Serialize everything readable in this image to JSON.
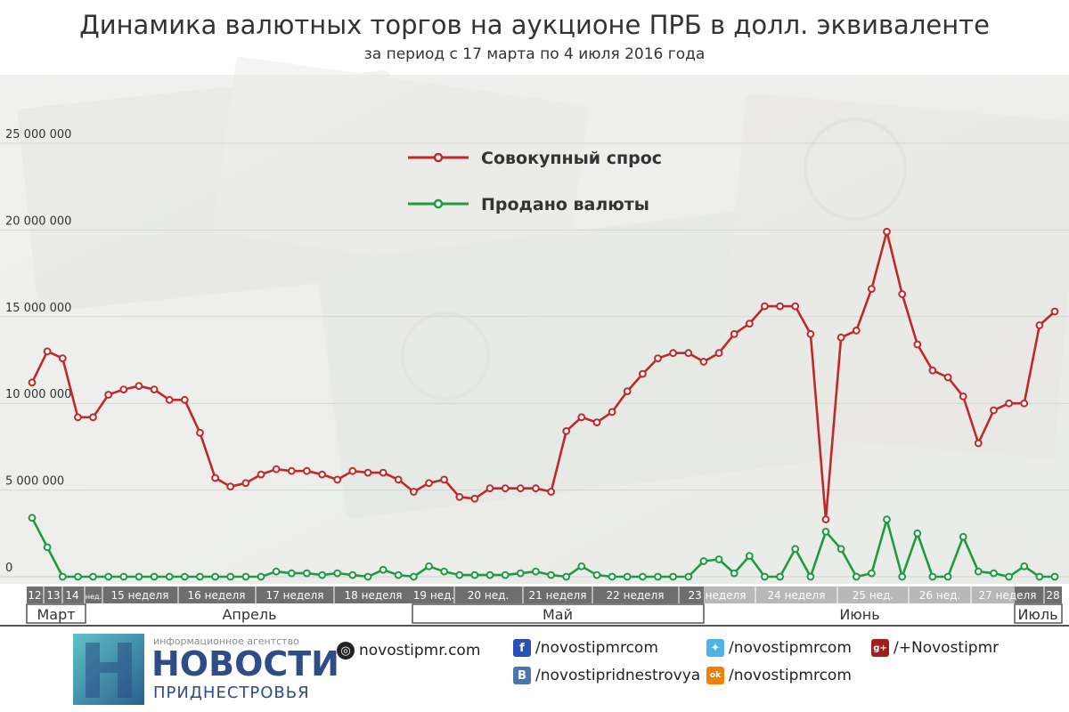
{
  "title": "Динамика валютных торгов на аукционе ПРБ в долл. эквиваленте",
  "subtitle": "за период с 17 марта по 4 июля 2016 года",
  "colors": {
    "demand": "#c0282c",
    "sold": "#1f9a43",
    "week_dark": "#6e6e6e",
    "week_light": "#b8b8b8",
    "brand": "#2e4c86"
  },
  "chart_data": {
    "type": "line",
    "title": "Динамика валютных торгов на аукционе ПРБ в долл. эквиваленте",
    "subtitle": "за период с 17 марта по 4 июля 2016 года",
    "ylim": [
      0,
      25000000
    ],
    "yticks": [
      0,
      5000000,
      10000000,
      15000000,
      20000000,
      25000000
    ],
    "ytick_labels": [
      "0",
      "5 000 000",
      "10 000 000",
      "15 000 000",
      "20 000 000",
      "25 000 000"
    ],
    "grid": true,
    "legend_position": "top-center",
    "legend": [
      "Совокупный спрос",
      "Продано валюты"
    ],
    "series": [
      {
        "name": "Совокупный спрос",
        "values": [
          11200000,
          13000000,
          12600000,
          9200000,
          9200000,
          10500000,
          10800000,
          11000000,
          10800000,
          10200000,
          10200000,
          8300000,
          5700000,
          5200000,
          5400000,
          5900000,
          6200000,
          6100000,
          6100000,
          5900000,
          5600000,
          6100000,
          6000000,
          6000000,
          5600000,
          4900000,
          5400000,
          5600000,
          4600000,
          4500000,
          5100000,
          5100000,
          5100000,
          5100000,
          4900000,
          8400000,
          9200000,
          8900000,
          9500000,
          10700000,
          11700000,
          12600000,
          12900000,
          12900000,
          12400000,
          12900000,
          14000000,
          14600000,
          15600000,
          15600000,
          15600000,
          14000000,
          3300000,
          13800000,
          14200000,
          16600000,
          19900000,
          16300000,
          13400000,
          11900000,
          11500000,
          10400000,
          7700000,
          9600000,
          10000000,
          10000000,
          14500000,
          15300000
        ]
      },
      {
        "name": "Продано валюты",
        "values": [
          3400000,
          1700000,
          0,
          0,
          0,
          0,
          0,
          0,
          0,
          0,
          0,
          0,
          0,
          0,
          0,
          0,
          300000,
          200000,
          200000,
          100000,
          200000,
          100000,
          0,
          400000,
          100000,
          0,
          600000,
          300000,
          100000,
          100000,
          100000,
          100000,
          200000,
          300000,
          100000,
          0,
          600000,
          100000,
          0,
          0,
          0,
          0,
          0,
          0,
          900000,
          1000000,
          200000,
          1200000,
          0,
          0,
          1600000,
          0,
          2600000,
          1600000,
          0,
          200000,
          3300000,
          0,
          2500000,
          0,
          0,
          2300000,
          300000,
          200000,
          0,
          600000,
          0,
          0
        ]
      }
    ],
    "week_bands": [
      "12",
      "13",
      "14",
      "нед.",
      "15 неделя",
      "16 неделя",
      "17 неделя",
      "18 неделя",
      "19 нед.",
      "20 нед.",
      "21 неделя",
      "22 неделя",
      "23 неделя",
      "24 неделя",
      "25 нед.",
      "26 нед.",
      "27 неделя",
      "28"
    ],
    "months": [
      "Март",
      "Апрель",
      "Май",
      "Июнь",
      "Июль"
    ]
  },
  "footer": {
    "brand_top": "информационное агентство",
    "brand_main": "НОВОСТИ",
    "brand_sub": "ПРИДНЕСТРОВЬЯ",
    "site": "novostipmr.com",
    "facebook": "/novostipmrcom",
    "twitter": "/novostipmrcom",
    "gplus": "/+Novostipmr",
    "vk": "/novostipridnestrovya",
    "ok": "/novostipmrcom",
    "fb_icon": "f",
    "vk_icon": "B",
    "gp_icon": "g+",
    "ok_icon": "ok"
  }
}
